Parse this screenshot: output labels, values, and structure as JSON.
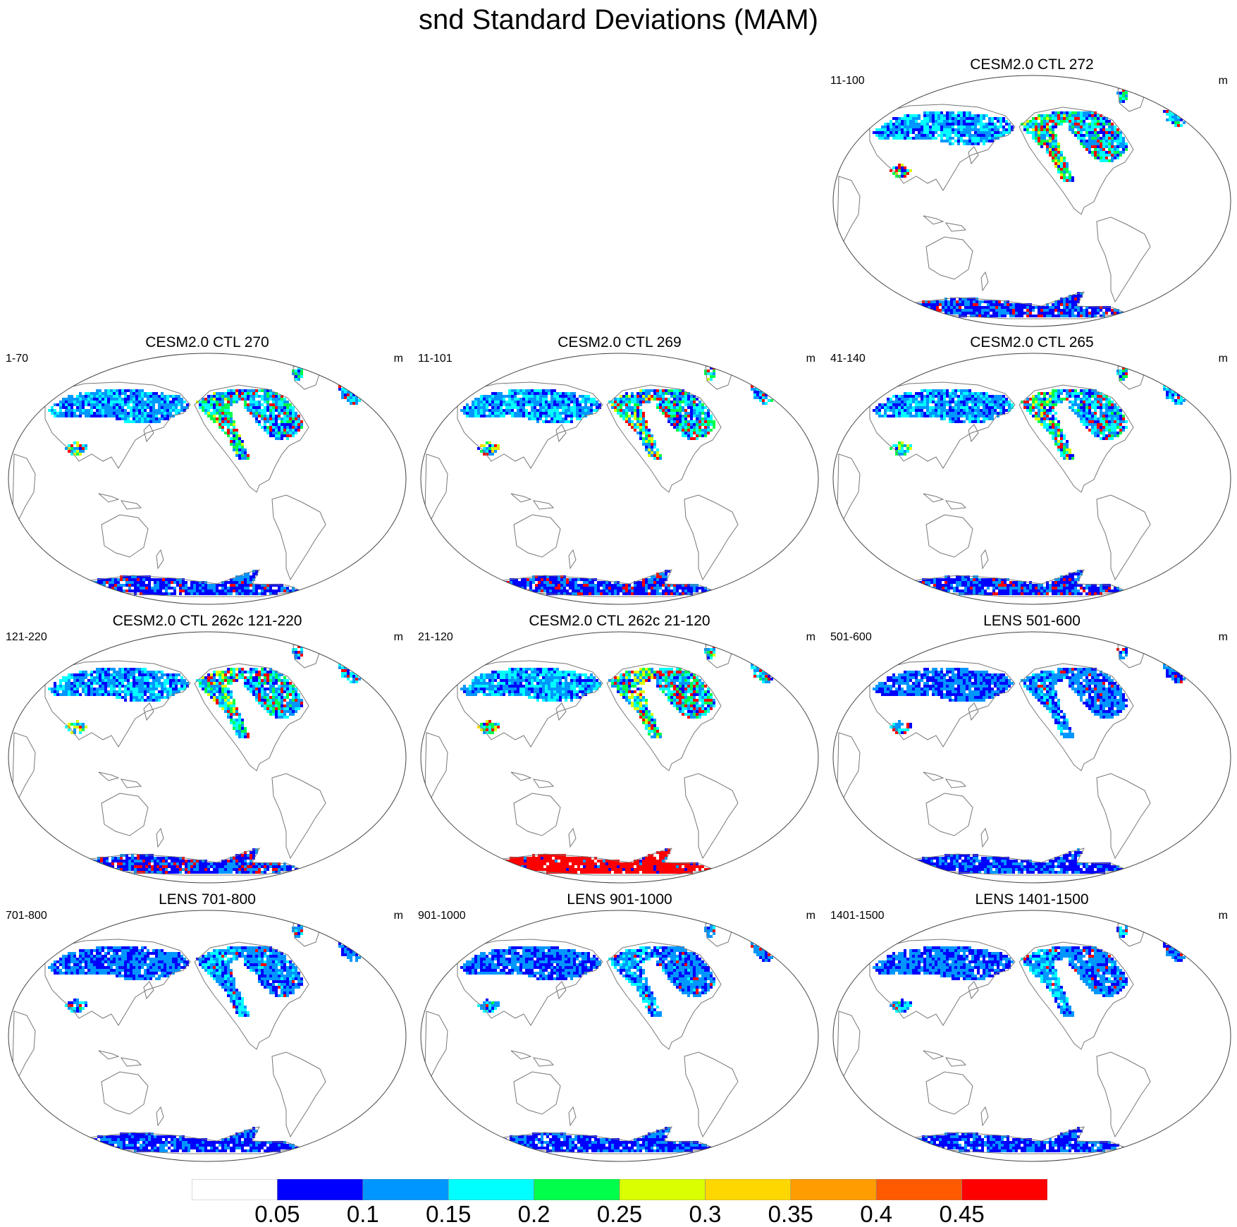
{
  "title": "snd Standard Deviations (MAM)",
  "panels": [
    {
      "id": "p0",
      "title": "CESM2.0 CTL 272",
      "years": "11-100",
      "units": "m",
      "intensity": 0.58,
      "antarctic_hot": 0.1
    },
    {
      "id": "p1",
      "title": "CESM2.0 CTL 270",
      "years": "1-70",
      "units": "m",
      "intensity": 0.52,
      "antarctic_hot": 0.1
    },
    {
      "id": "p2",
      "title": "CESM2.0 CTL 269",
      "years": "11-101",
      "units": "m",
      "intensity": 0.58,
      "antarctic_hot": 0.12
    },
    {
      "id": "p3",
      "title": "CESM2.0 CTL 265",
      "years": "41-140",
      "units": "m",
      "intensity": 0.52,
      "antarctic_hot": 0.1
    },
    {
      "id": "p4",
      "title": "CESM2.0 CTL 262c 121-220",
      "years": "121-220",
      "units": "m",
      "intensity": 0.56,
      "antarctic_hot": 0.2
    },
    {
      "id": "p5",
      "title": "CESM2.0 CTL 262c 21-120",
      "years": "21-120",
      "units": "m",
      "intensity": 0.62,
      "antarctic_hot": 0.9
    },
    {
      "id": "p6",
      "title": "LENS 501-600",
      "years": "501-600",
      "units": "m",
      "intensity": 0.18,
      "antarctic_hot": 0.0
    },
    {
      "id": "p7",
      "title": "LENS 701-800",
      "years": "701-800",
      "units": "m",
      "intensity": 0.25,
      "antarctic_hot": 0.0
    },
    {
      "id": "p8",
      "title": "LENS 901-1000",
      "years": "901-1000",
      "units": "m",
      "intensity": 0.22,
      "antarctic_hot": 0.0
    },
    {
      "id": "p9",
      "title": "LENS 1401-1500",
      "years": "1401-1500",
      "units": "m",
      "intensity": 0.22,
      "antarctic_hot": 0.0
    }
  ],
  "colorbar": {
    "colors": [
      "#ffffff",
      "#0000ff",
      "#0096ff",
      "#00ffff",
      "#00ff4a",
      "#d9ff00",
      "#ffd700",
      "#ff9d00",
      "#ff5a00",
      "#ff0000"
    ],
    "labels": [
      "0.05",
      "0.1",
      "0.15",
      "0.2",
      "0.25",
      "0.3",
      "0.35",
      "0.4",
      "0.45"
    ]
  }
}
